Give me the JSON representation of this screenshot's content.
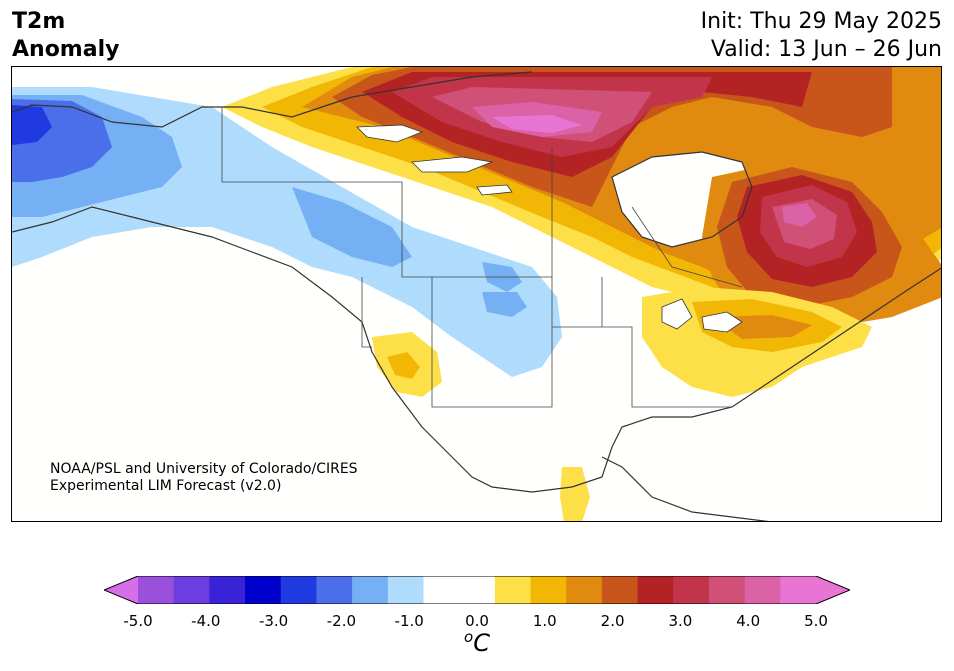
{
  "header": {
    "title_line1": "T2m",
    "title_line2": "Anomaly",
    "init": "Init: Thu 29 May 2025",
    "valid": "Valid: 13 Jun – 26 Jun"
  },
  "credit": {
    "line1": "NOAA/PSL and University of Colorado/CIRES",
    "line2": "Experimental LIM Forecast (v2.0)"
  },
  "colorbar": {
    "unit_main": "C",
    "unit_sup": "o",
    "ticks": [
      "-5.0",
      "-4.0",
      "-3.0",
      "-2.0",
      "-1.0",
      "0.0",
      "1.0",
      "2.0",
      "3.0",
      "4.0",
      "5.0"
    ],
    "levels": [
      -5.0,
      -4.5,
      -4.0,
      -3.5,
      -3.0,
      -2.5,
      -2.0,
      -1.5,
      -1.0,
      -0.5,
      0.5,
      1.0,
      1.5,
      2.0,
      2.5,
      3.0,
      3.5,
      4.0,
      4.5,
      5.0
    ],
    "colors": {
      "below_min": "#d66ee8",
      "bins": [
        "#9b50dc",
        "#6c3ee0",
        "#3a22d6",
        "#0000cc",
        "#1f3ae0",
        "#4a6fe8",
        "#75b0f5",
        "#afdcfd",
        "#ffffff",
        "#ffffff",
        "#fde047",
        "#f2b705",
        "#e08a0f",
        "#c8551a",
        "#b42323",
        "#c2344a",
        "#d05078",
        "#dc62a8",
        "#e874d4"
      ],
      "above_max": "#e874d4"
    }
  },
  "map": {
    "region": "North America",
    "regions": [
      {
        "name": "alaska-cold-anomaly",
        "sign": "negative"
      },
      {
        "name": "canadian-prairies-cold-anomaly",
        "sign": "negative"
      },
      {
        "name": "northern-plains-cold-anomaly",
        "sign": "negative"
      },
      {
        "name": "nunavut-warm-anomaly",
        "sign": "positive"
      },
      {
        "name": "quebec-warm-anomaly",
        "sign": "positive"
      },
      {
        "name": "great-lakes-warm-anomaly",
        "sign": "positive"
      },
      {
        "name": "california-warm-anomaly",
        "sign": "positive"
      },
      {
        "name": "mexico-warm-anomaly",
        "sign": "positive"
      }
    ]
  }
}
